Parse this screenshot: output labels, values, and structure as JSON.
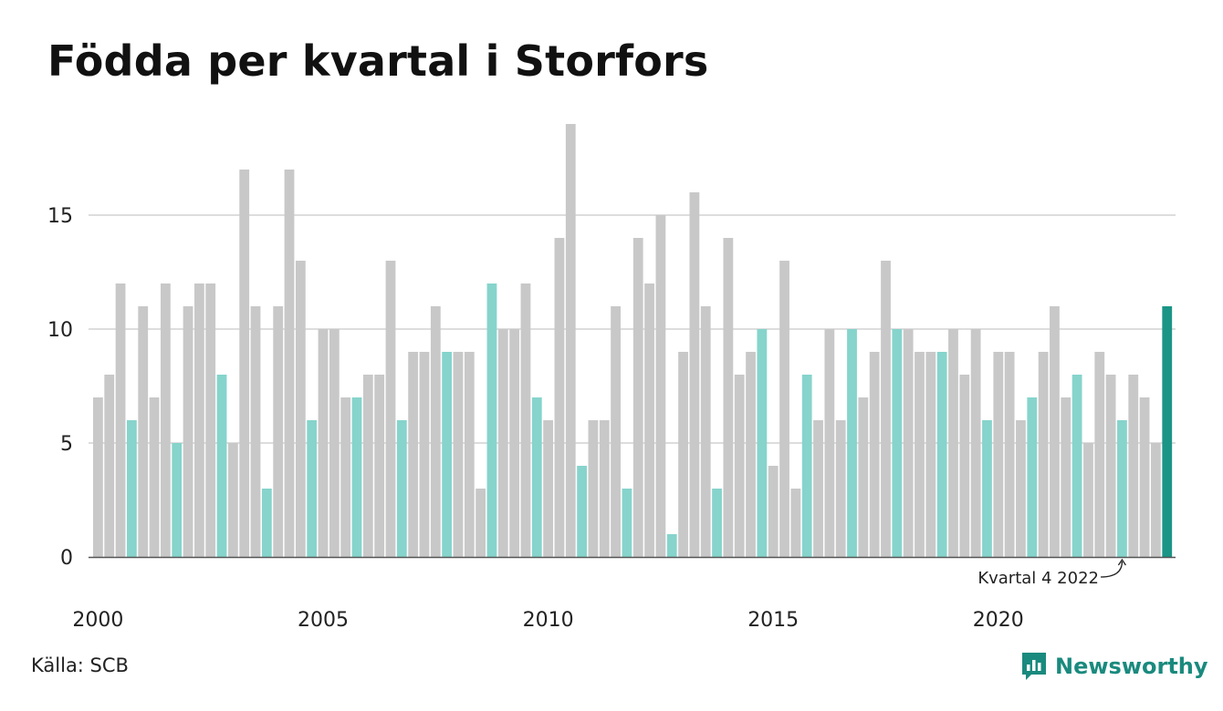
{
  "colors": {
    "gray": "#c8c8c8",
    "teal_light": "#86d4cc",
    "teal_dark": "#1b9586",
    "grid": "#dddddd",
    "axis": "#555555",
    "logo": "#1a8a7e"
  },
  "chart_data": {
    "type": "bar",
    "title": "Födda per kvartal i Storfors",
    "ylim": [
      0,
      19
    ],
    "y_ticks": [
      0,
      5,
      10,
      15
    ],
    "x_tick_labels": [
      "2000",
      "2005",
      "2010",
      "2015",
      "2020"
    ],
    "grid": true,
    "start_year": 2000,
    "quarters_per_year": 4,
    "values": [
      7,
      8,
      12,
      6,
      11,
      7,
      12,
      5,
      11,
      12,
      12,
      8,
      5,
      17,
      11,
      3,
      11,
      17,
      13,
      6,
      10,
      10,
      7,
      7,
      8,
      8,
      13,
      6,
      9,
      9,
      11,
      9,
      9,
      9,
      3,
      12,
      10,
      10,
      12,
      7,
      6,
      14,
      19,
      4,
      6,
      6,
      11,
      3,
      14,
      12,
      15,
      1,
      9,
      16,
      11,
      3,
      14,
      8,
      9,
      10,
      4,
      13,
      3,
      8,
      6,
      10,
      6,
      10,
      7,
      9,
      13,
      10,
      10,
      9,
      9,
      9,
      10,
      8,
      10,
      6,
      9,
      9,
      6,
      7,
      9,
      11,
      7,
      8,
      5,
      9,
      8,
      6,
      8,
      7,
      5,
      11
    ],
    "highlight_quarter": 4,
    "annotation": {
      "text": "Kvartal 4 2022",
      "target_index": 91
    }
  },
  "source": {
    "text": "Källa: SCB"
  },
  "logo": {
    "text": "Newsworthy",
    "icon": "newsworthy-chart-icon"
  }
}
